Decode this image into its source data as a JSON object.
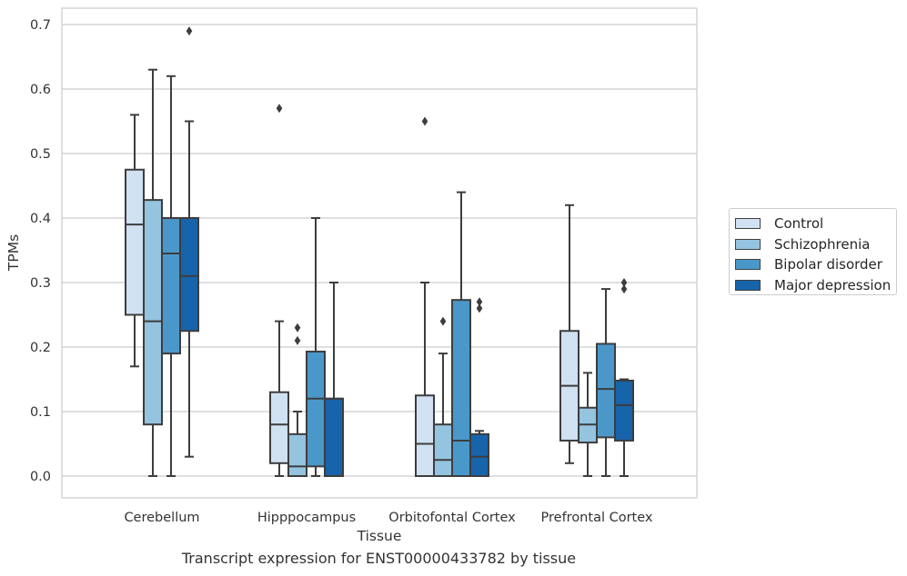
{
  "chart_data": {
    "type": "box",
    "title": "Transcript expression for ENST00000433782 by tissue",
    "xlabel": "Tissue",
    "ylabel": "TPMs",
    "ylim": [
      -0.034,
      0.725
    ],
    "yticks": [
      0.0,
      0.1,
      0.2,
      0.3,
      0.4,
      0.5,
      0.6,
      0.7
    ],
    "ytick_labels": [
      "0.0",
      "0.1",
      "0.2",
      "0.3",
      "0.4",
      "0.5",
      "0.6",
      "0.7"
    ],
    "grid": "horizontal",
    "legend_position": "right",
    "categories": [
      "Cerebellum",
      "Hipppocampus",
      "Orbitofontal Cortex",
      "Prefrontal Cortex"
    ],
    "series": [
      {
        "name": "Control",
        "color": "#d0e1f2",
        "boxes": [
          {
            "whisker_low": 0.17,
            "q1": 0.25,
            "median": 0.39,
            "q3": 0.475,
            "whisker_high": 0.56,
            "outliers": []
          },
          {
            "whisker_low": 0.0,
            "q1": 0.02,
            "median": 0.08,
            "q3": 0.13,
            "whisker_high": 0.24,
            "outliers": [
              0.57
            ]
          },
          {
            "whisker_low": 0.0,
            "q1": 0.0,
            "median": 0.05,
            "q3": 0.125,
            "whisker_high": 0.3,
            "outliers": [
              0.55
            ]
          },
          {
            "whisker_low": 0.02,
            "q1": 0.055,
            "median": 0.14,
            "q3": 0.225,
            "whisker_high": 0.42,
            "outliers": []
          }
        ]
      },
      {
        "name": "Schizophrenia",
        "color": "#94c4df",
        "boxes": [
          {
            "whisker_low": 0.0,
            "q1": 0.08,
            "median": 0.24,
            "q3": 0.428,
            "whisker_high": 0.63,
            "outliers": []
          },
          {
            "whisker_low": 0.0,
            "q1": 0.0,
            "median": 0.015,
            "q3": 0.065,
            "whisker_high": 0.1,
            "outliers": [
              0.21,
              0.23
            ]
          },
          {
            "whisker_low": 0.0,
            "q1": 0.0,
            "median": 0.025,
            "q3": 0.08,
            "whisker_high": 0.19,
            "outliers": [
              0.24
            ]
          },
          {
            "whisker_low": 0.0,
            "q1": 0.052,
            "median": 0.08,
            "q3": 0.106,
            "whisker_high": 0.16,
            "outliers": []
          }
        ]
      },
      {
        "name": "Bipolar disorder",
        "color": "#4a98c9",
        "boxes": [
          {
            "whisker_low": 0.0,
            "q1": 0.19,
            "median": 0.345,
            "q3": 0.4,
            "whisker_high": 0.62,
            "outliers": []
          },
          {
            "whisker_low": 0.0,
            "q1": 0.015,
            "median": 0.12,
            "q3": 0.193,
            "whisker_high": 0.4,
            "outliers": []
          },
          {
            "whisker_low": 0.0,
            "q1": 0.0,
            "median": 0.055,
            "q3": 0.273,
            "whisker_high": 0.44,
            "outliers": []
          },
          {
            "whisker_low": 0.0,
            "q1": 0.06,
            "median": 0.135,
            "q3": 0.205,
            "whisker_high": 0.29,
            "outliers": []
          }
        ]
      },
      {
        "name": "Major depression",
        "color": "#1764ab",
        "boxes": [
          {
            "whisker_low": 0.03,
            "q1": 0.225,
            "median": 0.31,
            "q3": 0.4,
            "whisker_high": 0.55,
            "outliers": [
              0.69
            ]
          },
          {
            "whisker_low": 0.0,
            "q1": 0.0,
            "median": 0.12,
            "q3": 0.12,
            "whisker_high": 0.3,
            "outliers": []
          },
          {
            "whisker_low": 0.0,
            "q1": 0.0,
            "median": 0.03,
            "q3": 0.065,
            "whisker_high": 0.07,
            "outliers": [
              0.26,
              0.27
            ]
          },
          {
            "whisker_low": 0.0,
            "q1": 0.055,
            "median": 0.11,
            "q3": 0.148,
            "whisker_high": 0.15,
            "outliers": [
              0.29,
              0.3
            ]
          }
        ]
      }
    ]
  }
}
